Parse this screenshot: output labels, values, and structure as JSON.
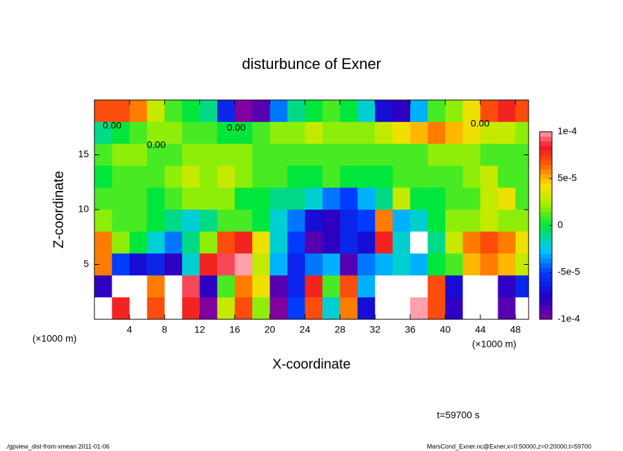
{
  "chart_data": {
    "type": "contourf",
    "title": "disturbunce of Exner",
    "xlabel": "X-coordinate",
    "ylabel": "Z-coordinate",
    "x_unit": "(×1000 m)",
    "z_unit": "(×1000 m)",
    "time_label": "t=59700 s",
    "footer_left": "./gpview_dist-from-xmean  2011-01-06",
    "footer_right": "MarsCond_Exner.nc@Exner,x=0:50000,z=0:20000,t=59700",
    "contour_labels": [
      "0.00",
      "0.00",
      "0.00",
      "0.00"
    ],
    "xlim": [
      0,
      49.5
    ],
    "ylim": [
      0,
      20
    ],
    "xticks": [
      4,
      8,
      12,
      16,
      20,
      24,
      28,
      32,
      36,
      40,
      44,
      48
    ],
    "yticks": [
      5,
      10,
      15
    ],
    "clim": [
      -0.0001,
      0.0001
    ],
    "cticks": [
      {
        "value": 0.0001,
        "label": "1e-4"
      },
      {
        "value": 5e-05,
        "label": "5e-5"
      },
      0,
      {
        "value": -5e-05,
        "label": "-5e-5"
      },
      {
        "value": -0.0001,
        "label": "-1e-4"
      }
    ],
    "x": [
      1,
      3,
      5,
      7,
      9,
      11,
      13,
      15,
      17,
      19,
      21,
      23,
      25,
      27,
      29,
      31,
      33,
      35,
      37,
      39,
      41,
      43,
      45,
      47,
      49
    ],
    "z": [
      19,
      17,
      15,
      13,
      11,
      9,
      7,
      5,
      3,
      1
    ],
    "values": [
      [
        7e-05,
        7e-05,
        6e-05,
        3e-05,
        1e-05,
        0,
        -1e-05,
        -6e-05,
        -0.0001,
        -9e-05,
        -4e-05,
        -1e-05,
        0,
        1e-05,
        0,
        -2e-05,
        -7e-05,
        -8e-05,
        -3e-05,
        1e-05,
        2e-05,
        4e-05,
        7e-05,
        8e-05,
        7e-05
      ],
      [
        -1e-05,
        0,
        1e-05,
        2e-05,
        2e-05,
        1e-05,
        1e-05,
        0,
        0,
        1e-05,
        2e-05,
        2e-05,
        3e-05,
        2e-05,
        2e-05,
        2e-05,
        3e-05,
        4e-05,
        5e-05,
        6e-05,
        5e-05,
        4e-05,
        3e-05,
        3e-05,
        2e-05
      ],
      [
        1e-05,
        2e-05,
        2e-05,
        1e-05,
        1e-05,
        2e-05,
        2e-05,
        2e-05,
        2e-05,
        1e-05,
        1e-05,
        1e-05,
        1e-05,
        1e-05,
        1e-05,
        1e-05,
        1e-05,
        1e-05,
        1e-05,
        2e-05,
        2e-05,
        2e-05,
        1e-05,
        1e-05,
        1e-05
      ],
      [
        0,
        1e-05,
        1e-05,
        1e-05,
        2e-05,
        3e-05,
        2e-05,
        3e-05,
        2e-05,
        1e-05,
        1e-05,
        0,
        0,
        1e-05,
        0,
        0,
        0,
        1e-05,
        1e-05,
        1e-05,
        1e-05,
        2e-05,
        3e-05,
        1e-05,
        1e-05
      ],
      [
        1e-05,
        1e-05,
        1e-05,
        0,
        1e-05,
        2e-05,
        2e-05,
        2e-05,
        0,
        0,
        -1e-05,
        -1e-05,
        -2e-05,
        -4e-05,
        -5e-05,
        -3e-05,
        -1e-05,
        3e-05,
        0,
        0,
        1e-05,
        1e-05,
        3e-05,
        4e-05,
        1e-05
      ],
      [
        2e-05,
        1e-05,
        1e-05,
        0,
        -1e-05,
        -2e-05,
        -1e-05,
        1e-05,
        1e-05,
        0,
        -2e-05,
        -4e-05,
        -7e-05,
        -8e-05,
        -6e-05,
        -5e-05,
        6e-05,
        -3e-05,
        -2e-05,
        0,
        2e-05,
        2e-05,
        3e-05,
        2e-05,
        2e-05
      ],
      [
        6e-05,
        2e-05,
        0,
        -2e-05,
        -4e-05,
        -1e-05,
        2e-05,
        7e-05,
        8e-05,
        4e-05,
        -2e-05,
        -5e-05,
        -9e-05,
        -8e-05,
        -6e-05,
        -7e-05,
        8e-05,
        -2e-05,
        0.00011,
        -1e-05,
        3e-05,
        6e-05,
        7e-05,
        6e-05,
        4e-05
      ],
      [
        6e-05,
        -5e-05,
        -7e-05,
        -6e-05,
        -8e-05,
        -2e-05,
        8e-05,
        9e-05,
        0.0001,
        3e-05,
        -3e-05,
        -6e-05,
        -4e-05,
        -3e-05,
        -9e-05,
        -4e-05,
        -3e-05,
        -2e-05,
        -3e-05,
        0,
        1e-05,
        5e-05,
        6e-05,
        5e-05,
        3e-05
      ],
      [
        -8e-05,
        0.00011,
        0.00011,
        6e-05,
        0.00011,
        9e-05,
        -8e-05,
        1e-05,
        6e-05,
        4e-05,
        -9e-05,
        -6e-05,
        8e-05,
        1e-05,
        7e-05,
        -3e-05,
        0.00011,
        0.00011,
        0.00011,
        7e-05,
        -7e-05,
        0.00011,
        0.00011,
        -8e-05,
        -6e-05
      ],
      [
        -0.00011,
        8e-05,
        0.00011,
        7e-05,
        0.00011,
        8e-05,
        -0.0001,
        3e-05,
        7e-05,
        2e-05,
        -0.0001,
        -5e-05,
        7e-05,
        -2e-05,
        6e-05,
        -7e-05,
        0.00011,
        0.00011,
        0.0001,
        7e-05,
        -8e-05,
        0.00011,
        -0.00011,
        -9e-05,
        -0.00011
      ]
    ]
  }
}
